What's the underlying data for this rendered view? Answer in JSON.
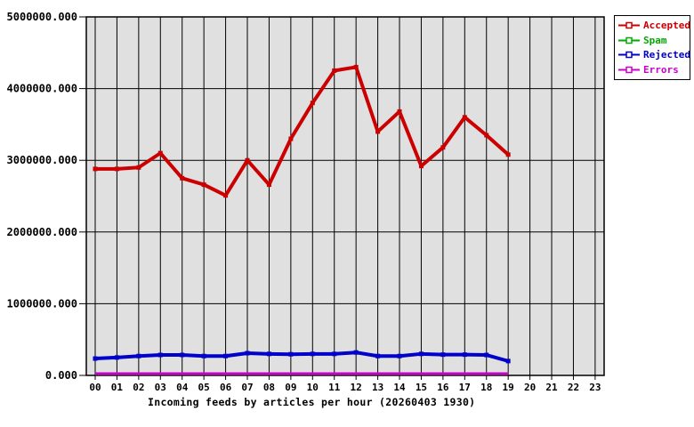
{
  "chart_data": {
    "type": "line",
    "title": "Incoming feeds by articles per hour (20260403 1930)",
    "xlabel": "",
    "ylabel": "",
    "x_tick_labels": [
      "00",
      "01",
      "02",
      "03",
      "04",
      "05",
      "06",
      "07",
      "08",
      "09",
      "10",
      "11",
      "12",
      "13",
      "14",
      "15",
      "16",
      "17",
      "18",
      "19",
      "20",
      "21",
      "22",
      "23"
    ],
    "y_tick_labels": [
      "0.000",
      "1000000.000",
      "2000000.000",
      "3000000.000",
      "4000000.000",
      "5000000.000"
    ],
    "y_tick_values": [
      0,
      1000000,
      2000000,
      3000000,
      4000000,
      5000000
    ],
    "ylim": [
      0,
      5000000
    ],
    "grid": true,
    "plot_bg": "#e0e0e0",
    "grid_color": "#000000",
    "legend_position": "top-right",
    "series": [
      {
        "name": "Accepted",
        "color": "#cc0000",
        "values": [
          2880000,
          2880000,
          2900000,
          3100000,
          2750000,
          2660000,
          2510000,
          3000000,
          2660000,
          3300000,
          3800000,
          4250000,
          4300000,
          3400000,
          3680000,
          2920000,
          3180000,
          3600000,
          3350000,
          3080000
        ]
      },
      {
        "name": "Spam",
        "color": "#00aa00",
        "values": [
          15000,
          15000,
          15000,
          15000,
          15000,
          15000,
          15000,
          15000,
          15000,
          15000,
          15000,
          15000,
          15000,
          15000,
          15000,
          15000,
          15000,
          15000,
          15000,
          15000
        ]
      },
      {
        "name": "Rejected",
        "color": "#0000cc",
        "values": [
          235000,
          250000,
          270000,
          285000,
          285000,
          270000,
          270000,
          310000,
          300000,
          295000,
          300000,
          300000,
          320000,
          270000,
          270000,
          300000,
          290000,
          290000,
          285000,
          200000
        ]
      },
      {
        "name": "Errors",
        "color": "#cc00cc",
        "values": [
          25000,
          25000,
          25000,
          25000,
          25000,
          25000,
          25000,
          25000,
          25000,
          25000,
          25000,
          25000,
          25000,
          25000,
          25000,
          25000,
          25000,
          25000,
          25000,
          25000
        ]
      }
    ]
  }
}
